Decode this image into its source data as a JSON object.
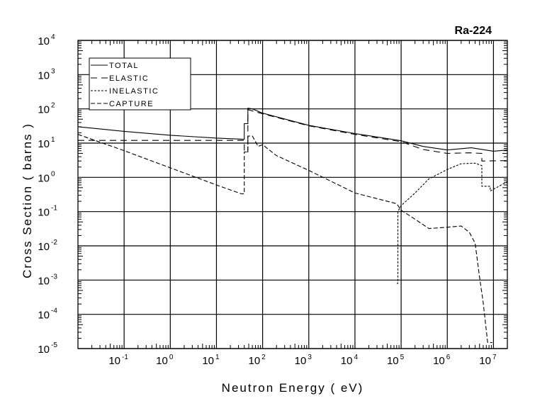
{
  "chart_data": {
    "type": "line",
    "title": "Ra-224",
    "xlabel": "Neutron Energy ( eV)",
    "ylabel": "Cross Section ( barns )",
    "xscale": "log",
    "yscale": "log",
    "xlim": [
      0.01,
      20000000
    ],
    "ylim": [
      1e-05,
      10000
    ],
    "grid": true,
    "legend_position": "top-left",
    "x_ticks": [
      {
        "base": "10",
        "exp": "-1",
        "value": 0.1
      },
      {
        "base": "10",
        "exp": "0",
        "value": 1
      },
      {
        "base": "10",
        "exp": "1",
        "value": 10
      },
      {
        "base": "10",
        "exp": "2",
        "value": 100
      },
      {
        "base": "10",
        "exp": "3",
        "value": 1000
      },
      {
        "base": "10",
        "exp": "4",
        "value": 10000
      },
      {
        "base": "10",
        "exp": "5",
        "value": 100000
      },
      {
        "base": "10",
        "exp": "6",
        "value": 1000000
      },
      {
        "base": "10",
        "exp": "7",
        "value": 10000000
      }
    ],
    "y_ticks": [
      {
        "base": "10",
        "exp": "4",
        "value": 10000
      },
      {
        "base": "10",
        "exp": "3",
        "value": 1000
      },
      {
        "base": "10",
        "exp": "2",
        "value": 100
      },
      {
        "base": "10",
        "exp": "1",
        "value": 10
      },
      {
        "base": "10",
        "exp": "0",
        "value": 1
      },
      {
        "base": "10",
        "exp": "-1",
        "value": 0.1
      },
      {
        "base": "10",
        "exp": "-2",
        "value": 0.01
      },
      {
        "base": "10",
        "exp": "-3",
        "value": 0.001
      },
      {
        "base": "10",
        "exp": "-4",
        "value": 0.0001
      },
      {
        "base": "10",
        "exp": "-5",
        "value": 1e-05
      }
    ],
    "series": [
      {
        "name": "TOTAL",
        "dash": "none",
        "points": [
          [
            0.01,
            30
          ],
          [
            0.1,
            22
          ],
          [
            1,
            17
          ],
          [
            10,
            14
          ],
          [
            40,
            13
          ],
          [
            40,
            37
          ],
          [
            48,
            37
          ],
          [
            48,
            105
          ],
          [
            60,
            100
          ],
          [
            100,
            75
          ],
          [
            1000,
            33
          ],
          [
            10000,
            19
          ],
          [
            100000,
            11.7
          ],
          [
            300000,
            8
          ],
          [
            1000000,
            6.3
          ],
          [
            3300000,
            7.3
          ],
          [
            10000000,
            5.8
          ],
          [
            20000000,
            6.3
          ]
        ]
      },
      {
        "name": "ELASTIC",
        "dash": "9,6",
        "points": [
          [
            0.01,
            12
          ],
          [
            40,
            12
          ],
          [
            40,
            5.5
          ],
          [
            48,
            5.5
          ],
          [
            48,
            95
          ],
          [
            100,
            72
          ],
          [
            1000,
            32
          ],
          [
            10000,
            18
          ],
          [
            100000,
            11
          ],
          [
            300000,
            6.5
          ],
          [
            1000000,
            5
          ],
          [
            3000000,
            5.2
          ],
          [
            5600000,
            5
          ],
          [
            5600000,
            3
          ],
          [
            20000000,
            3.1
          ]
        ]
      },
      {
        "name": "INELASTIC",
        "dash": "3,2",
        "points": [
          [
            80000,
            0.0008
          ],
          [
            85000,
            0.0008
          ],
          [
            85000,
            0.1
          ],
          [
            100000,
            0.15
          ],
          [
            200000,
            0.35
          ],
          [
            400000,
            0.9
          ],
          [
            1000000,
            1.7
          ],
          [
            2000000,
            2.5
          ],
          [
            4000000,
            2.6
          ],
          [
            5600000,
            2.2
          ],
          [
            5600000,
            0.55
          ],
          [
            8500000,
            0.55
          ],
          [
            8500000,
            0.4
          ],
          [
            20000000,
            0.75
          ]
        ]
      },
      {
        "name": "CAPTURE",
        "dash": "6,3",
        "points": [
          [
            0.01,
            18
          ],
          [
            0.1,
            6
          ],
          [
            1,
            1.9
          ],
          [
            10,
            0.6
          ],
          [
            35,
            0.33
          ],
          [
            40,
            0.33
          ],
          [
            40,
            5.5
          ],
          [
            48,
            5.5
          ],
          [
            48,
            16
          ],
          [
            60,
            16
          ],
          [
            80,
            8
          ],
          [
            100,
            9
          ],
          [
            200,
            4.3
          ],
          [
            1000,
            1.6
          ],
          [
            10000,
            0.35
          ],
          [
            80000,
            0.17
          ],
          [
            100000,
            0.11
          ],
          [
            200000,
            0.06
          ],
          [
            400000,
            0.032
          ],
          [
            1000000,
            0.035
          ],
          [
            2000000,
            0.038
          ],
          [
            3000000,
            0.025
          ],
          [
            4000000,
            0.012
          ],
          [
            5000000,
            0.0012
          ],
          [
            6000000,
            0.00022
          ],
          [
            7500000,
            1.5e-05
          ],
          [
            9500000,
            1.5e-05
          ]
        ]
      }
    ]
  }
}
